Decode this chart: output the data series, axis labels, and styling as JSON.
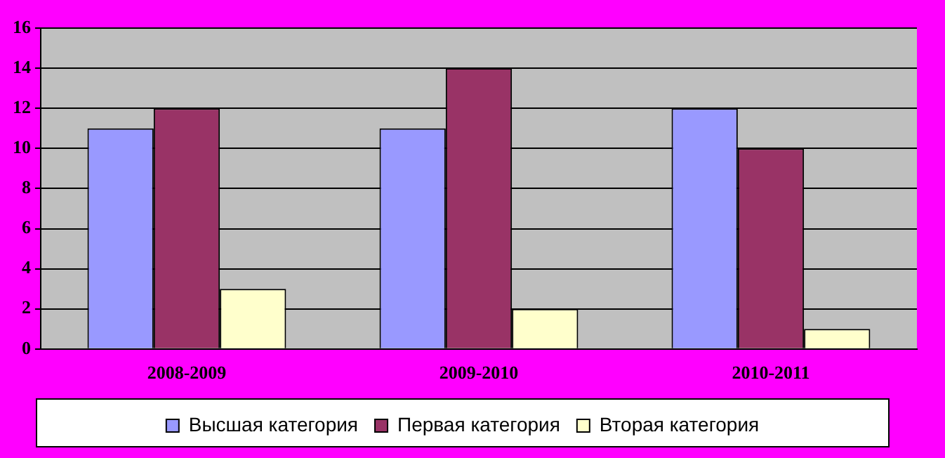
{
  "chart_data": {
    "type": "bar",
    "categories": [
      "2008-2009",
      "2009-2010",
      "2010-2011"
    ],
    "series": [
      {
        "name": "Высшая категория",
        "color": "#9999ff",
        "values": [
          11,
          11,
          12
        ]
      },
      {
        "name": "Первая категория",
        "color": "#993366",
        "values": [
          12,
          14,
          10
        ]
      },
      {
        "name": "Вторая категория",
        "color": "#ffffcc",
        "values": [
          3,
          2,
          1
        ]
      }
    ],
    "ylim": [
      0,
      16
    ],
    "yticks": [
      0,
      2,
      4,
      6,
      8,
      10,
      12,
      14,
      16
    ],
    "grid": "y",
    "legend": "bottom"
  }
}
